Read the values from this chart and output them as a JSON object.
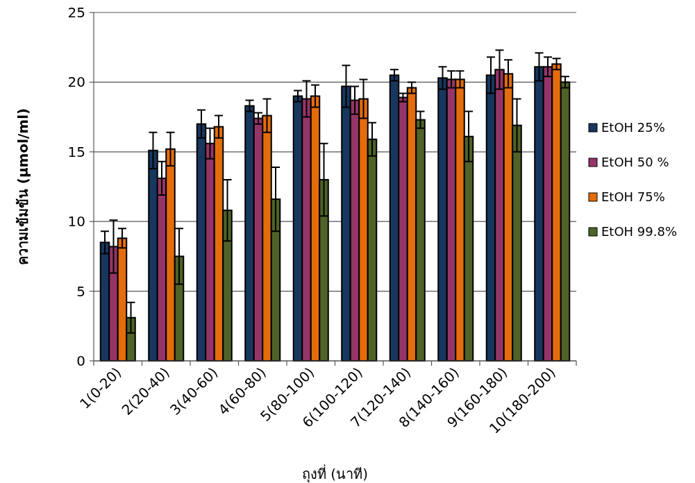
{
  "chart_data": {
    "type": "bar",
    "xlabel": "ถุงที่ (นาที)",
    "ylabel": "ความเข้มข้น   (µmol/ml)",
    "categories": [
      "1(0-20)",
      "2(20-40)",
      "3(40-60)",
      "4(60-80)",
      "5(80-100)",
      "6(100-120)",
      "7(120-140)",
      "8(140-160)",
      "9(160-180)",
      "10(180-200)"
    ],
    "series": [
      {
        "name": "EtOH 25%",
        "color": "#17375e",
        "values": [
          8.5,
          15.1,
          17.0,
          18.3,
          19.0,
          19.7,
          20.5,
          20.3,
          20.5,
          21.1
        ],
        "errors": [
          0.8,
          1.3,
          1.0,
          0.4,
          0.4,
          1.5,
          0.4,
          0.8,
          1.3,
          1.0
        ]
      },
      {
        "name": "EtOH 50 %",
        "color": "#953567",
        "values": [
          8.2,
          13.1,
          15.6,
          17.4,
          18.8,
          18.7,
          18.9,
          20.2,
          20.9,
          21.1
        ],
        "errors": [
          1.9,
          1.2,
          1.1,
          0.4,
          1.3,
          1.0,
          0.3,
          0.6,
          1.4,
          0.7
        ]
      },
      {
        "name": "EtOH 75%",
        "color": "#e46c0a",
        "values": [
          8.8,
          15.2,
          16.8,
          17.6,
          19.0,
          18.8,
          19.6,
          20.2,
          20.6,
          21.3
        ],
        "errors": [
          0.7,
          1.2,
          0.8,
          1.2,
          0.8,
          1.4,
          0.4,
          0.6,
          1.0,
          0.4
        ]
      },
      {
        "name": "EtOH 99.8%",
        "color": "#4f6228",
        "values": [
          3.1,
          7.5,
          10.8,
          11.6,
          13.0,
          15.9,
          17.3,
          16.1,
          16.9,
          20.0
        ],
        "errors": [
          1.1,
          2.0,
          2.2,
          2.3,
          2.6,
          1.2,
          0.6,
          1.8,
          1.9,
          0.4
        ]
      }
    ],
    "ylim": [
      0,
      25
    ],
    "yticks": [
      0,
      5,
      10,
      15,
      20,
      25
    ],
    "grid": "y",
    "legend": "right"
  }
}
